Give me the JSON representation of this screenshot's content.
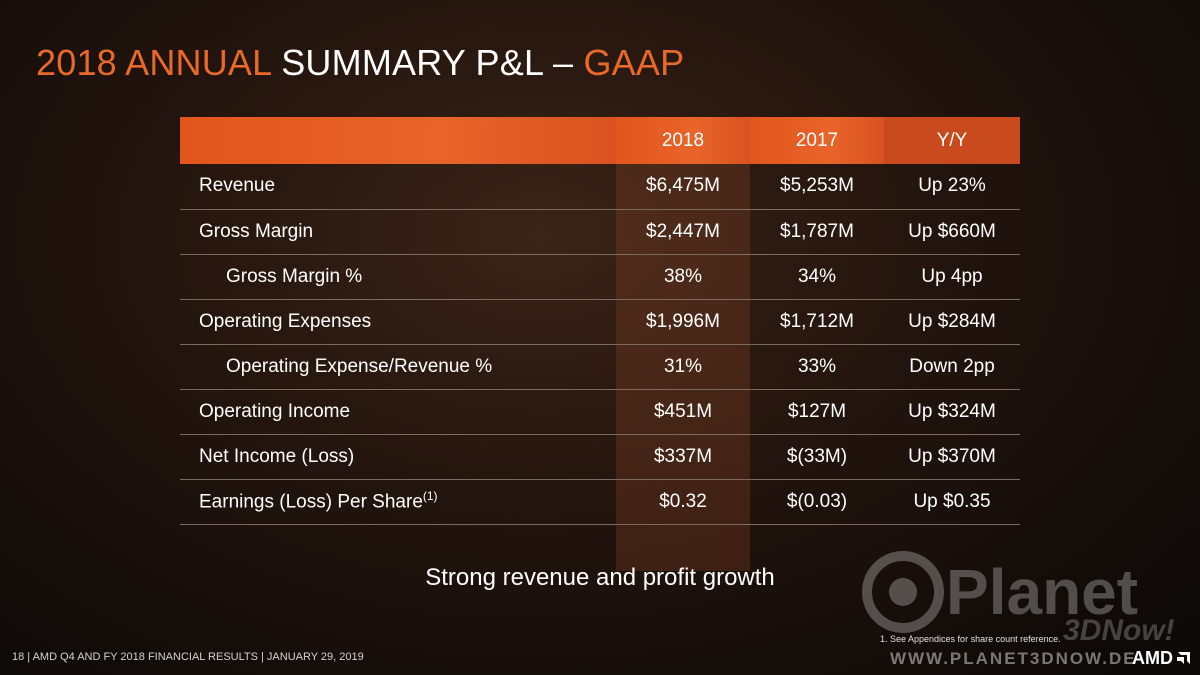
{
  "title": {
    "accent1": "2018 ANNUAL",
    "main": "SUMMARY P&L –",
    "accent2": "GAAP"
  },
  "table": {
    "headers": [
      "",
      "2018",
      "2017",
      "Y/Y"
    ],
    "rows": [
      {
        "label": "Revenue",
        "v2018": "$6,475M",
        "v2017": "$5,253M",
        "yy": "Up  23%"
      },
      {
        "label": "Gross Margin",
        "v2018": "$2,447M",
        "v2017": "$1,787M",
        "yy": "Up $660M"
      },
      {
        "label": "Gross Margin %",
        "v2018": "38%",
        "v2017": "34%",
        "yy": "Up  4pp"
      },
      {
        "label": "Operating Expenses",
        "v2018": "$1,996M",
        "v2017": "$1,712M",
        "yy": "Up $284M"
      },
      {
        "label": "Operating Expense/Revenue %",
        "v2018": "31%",
        "v2017": "33%",
        "yy": "Down 2pp"
      },
      {
        "label": "Operating Income",
        "v2018": "$451M",
        "v2017": "$127M",
        "yy": "Up $324M"
      },
      {
        "label": "Net Income (Loss)",
        "v2018": "$337M",
        "v2017": "$(33M)",
        "yy": "Up $370M"
      },
      {
        "label": "Earnings (Loss) Per Share",
        "label_sup": "(1)",
        "v2018": "$0.32",
        "v2017": "$(0.03)",
        "yy": "Up $0.35"
      }
    ]
  },
  "tagline": "Strong revenue and profit growth",
  "footnote": "1.    See Appendices for share count reference.",
  "footer": "18   |  AMD Q4 AND FY 2018 FINANCIAL RESULTS  |  JANUARY 29, 2019",
  "watermark": {
    "brand": "Planet",
    "sub": "3DNow!",
    "site": "WWW.PLANET3DNOW.DE"
  },
  "logo": "AMD",
  "colors": {
    "accent": "#e8692a",
    "header": "#e2561c"
  }
}
